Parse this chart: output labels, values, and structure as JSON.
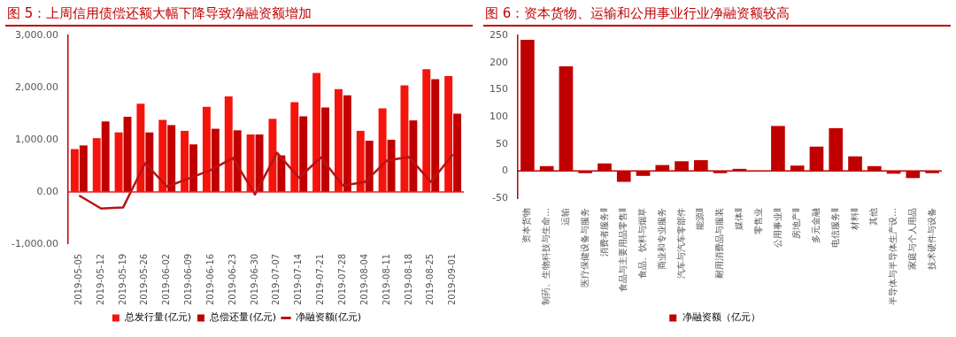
{
  "chart_data": [
    {
      "type": "bar",
      "title": "图 5：上周信用债偿还额大幅下降导致净融资额增加",
      "categories": [
        "2019-05-05",
        "2019-05-12",
        "2019-05-19",
        "2019-05-26",
        "2019-06-02",
        "2019-06-09",
        "2019-06-16",
        "2019-06-23",
        "2019-06-30",
        "2019-07-07",
        "2019-07-14",
        "2019-07-21",
        "2019-07-28",
        "2019-08-04",
        "2019-08-11",
        "2019-08-18",
        "2019-08-25",
        "2019-09-01"
      ],
      "series": [
        {
          "name": "总发行量(亿元)",
          "color": "#f5140c",
          "values": [
            820,
            1030,
            1140,
            1690,
            1380,
            1170,
            1630,
            1830,
            1100,
            1400,
            1720,
            2280,
            1970,
            1170,
            1600,
            2040,
            2350,
            2220
          ]
        },
        {
          "name": "总偿还量(亿元)",
          "color": "#c00000",
          "values": [
            890,
            1350,
            1440,
            1140,
            1280,
            910,
            1210,
            1180,
            1100,
            700,
            1450,
            1620,
            1850,
            980,
            1000,
            1370,
            2160,
            1500
          ]
        },
        {
          "name": "净融资额(亿元)",
          "type": "line",
          "color": "#b81414",
          "values": [
            -70,
            -320,
            -300,
            550,
            100,
            260,
            420,
            650,
            -50,
            750,
            270,
            660,
            120,
            190,
            600,
            670,
            190,
            720
          ]
        }
      ],
      "ylim": [
        -1000,
        3000
      ],
      "yticks": [
        {
          "value": -1000,
          "label": "-1,000.00"
        },
        {
          "value": 0,
          "label": "0.00"
        },
        {
          "value": 1000,
          "label": "1,000.00"
        },
        {
          "value": 2000,
          "label": "2,000.00"
        },
        {
          "value": 3000,
          "label": "3,000.00"
        }
      ],
      "legend": "bottom",
      "marker": "none",
      "ref_lines": [
        {
          "axis": "y",
          "value": 0,
          "color": "#e02020"
        }
      ]
    },
    {
      "type": "bar",
      "title": "图 6：资本货物、运输和公用事业行业净融资额较高",
      "categories": [
        "资本货物",
        "制药、生物科技与生命…",
        "运输",
        "医疗保健设备与服务",
        "消费者服务Ⅱ",
        "食品与主要用品零售Ⅱ",
        "食品、饮料与烟草",
        "商业和专业服务",
        "汽车与汽车零部件",
        "能源Ⅱ",
        "耐用消费品与服装",
        "媒体Ⅱ",
        "零售业",
        "公用事业Ⅱ",
        "房地产Ⅱ",
        "多元金融",
        "电信服务Ⅱ",
        "材料Ⅱ",
        "其他",
        "半导体与半导体生产设…",
        "家庭与个人用品",
        "技术硬件与设备"
      ],
      "series": [
        {
          "name": "净融资额（亿元）",
          "color": "#c00000",
          "values": [
            242,
            9,
            193,
            -4,
            14,
            -20,
            -9,
            11,
            18,
            20,
            -4,
            4,
            0,
            83,
            10,
            45,
            79,
            27,
            9,
            -5,
            -13,
            -4
          ]
        }
      ],
      "ylim": [
        -50,
        250
      ],
      "yticks": [
        -50,
        0,
        50,
        100,
        150,
        200,
        250
      ],
      "legend": "bottom",
      "ref_lines": [
        {
          "axis": "y",
          "value": 0,
          "color": "#c00000"
        }
      ]
    }
  ]
}
